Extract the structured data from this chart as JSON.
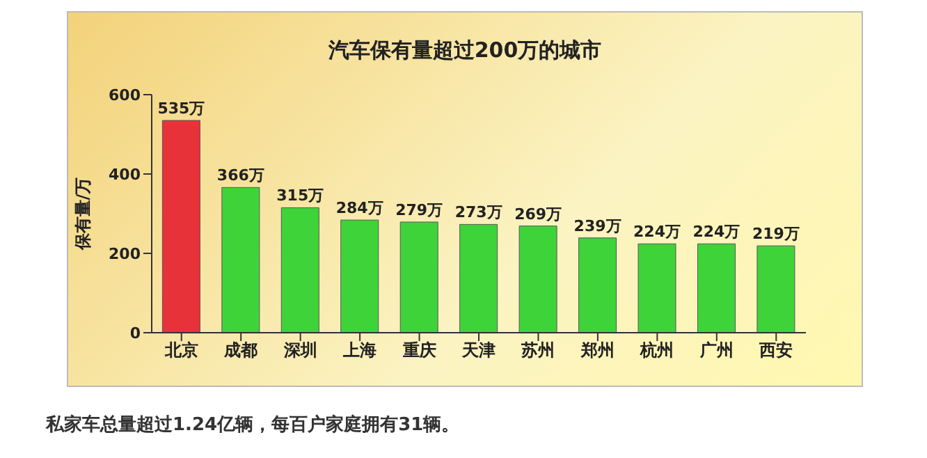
{
  "chart_data": {
    "type": "bar",
    "title": "汽车保有量超过200万的城市",
    "ylabel": "保有量/万",
    "categories": [
      "北京",
      "成都",
      "深圳",
      "上海",
      "重庆",
      "天津",
      "苏州",
      "郑州",
      "杭州",
      "广州",
      "西安"
    ],
    "values": [
      535,
      366,
      315,
      284,
      279,
      273,
      269,
      239,
      224,
      224,
      219
    ],
    "value_labels": [
      "535万",
      "366万",
      "315万",
      "284万",
      "279万",
      "273万",
      "269万",
      "239万",
      "224万",
      "224万",
      "219万"
    ],
    "colors": [
      "#e8323a",
      "#3fd33a",
      "#3fd33a",
      "#3fd33a",
      "#3fd33a",
      "#3fd33a",
      "#3fd33a",
      "#3fd33a",
      "#3fd33a",
      "#3fd33a",
      "#3fd33a"
    ],
    "ylim": [
      0,
      600
    ],
    "yticks": [
      0,
      200,
      400,
      600
    ],
    "grid": false,
    "annotations": [
      "私家车总量超过1.24亿辆，每百户家庭拥有31辆。"
    ]
  }
}
